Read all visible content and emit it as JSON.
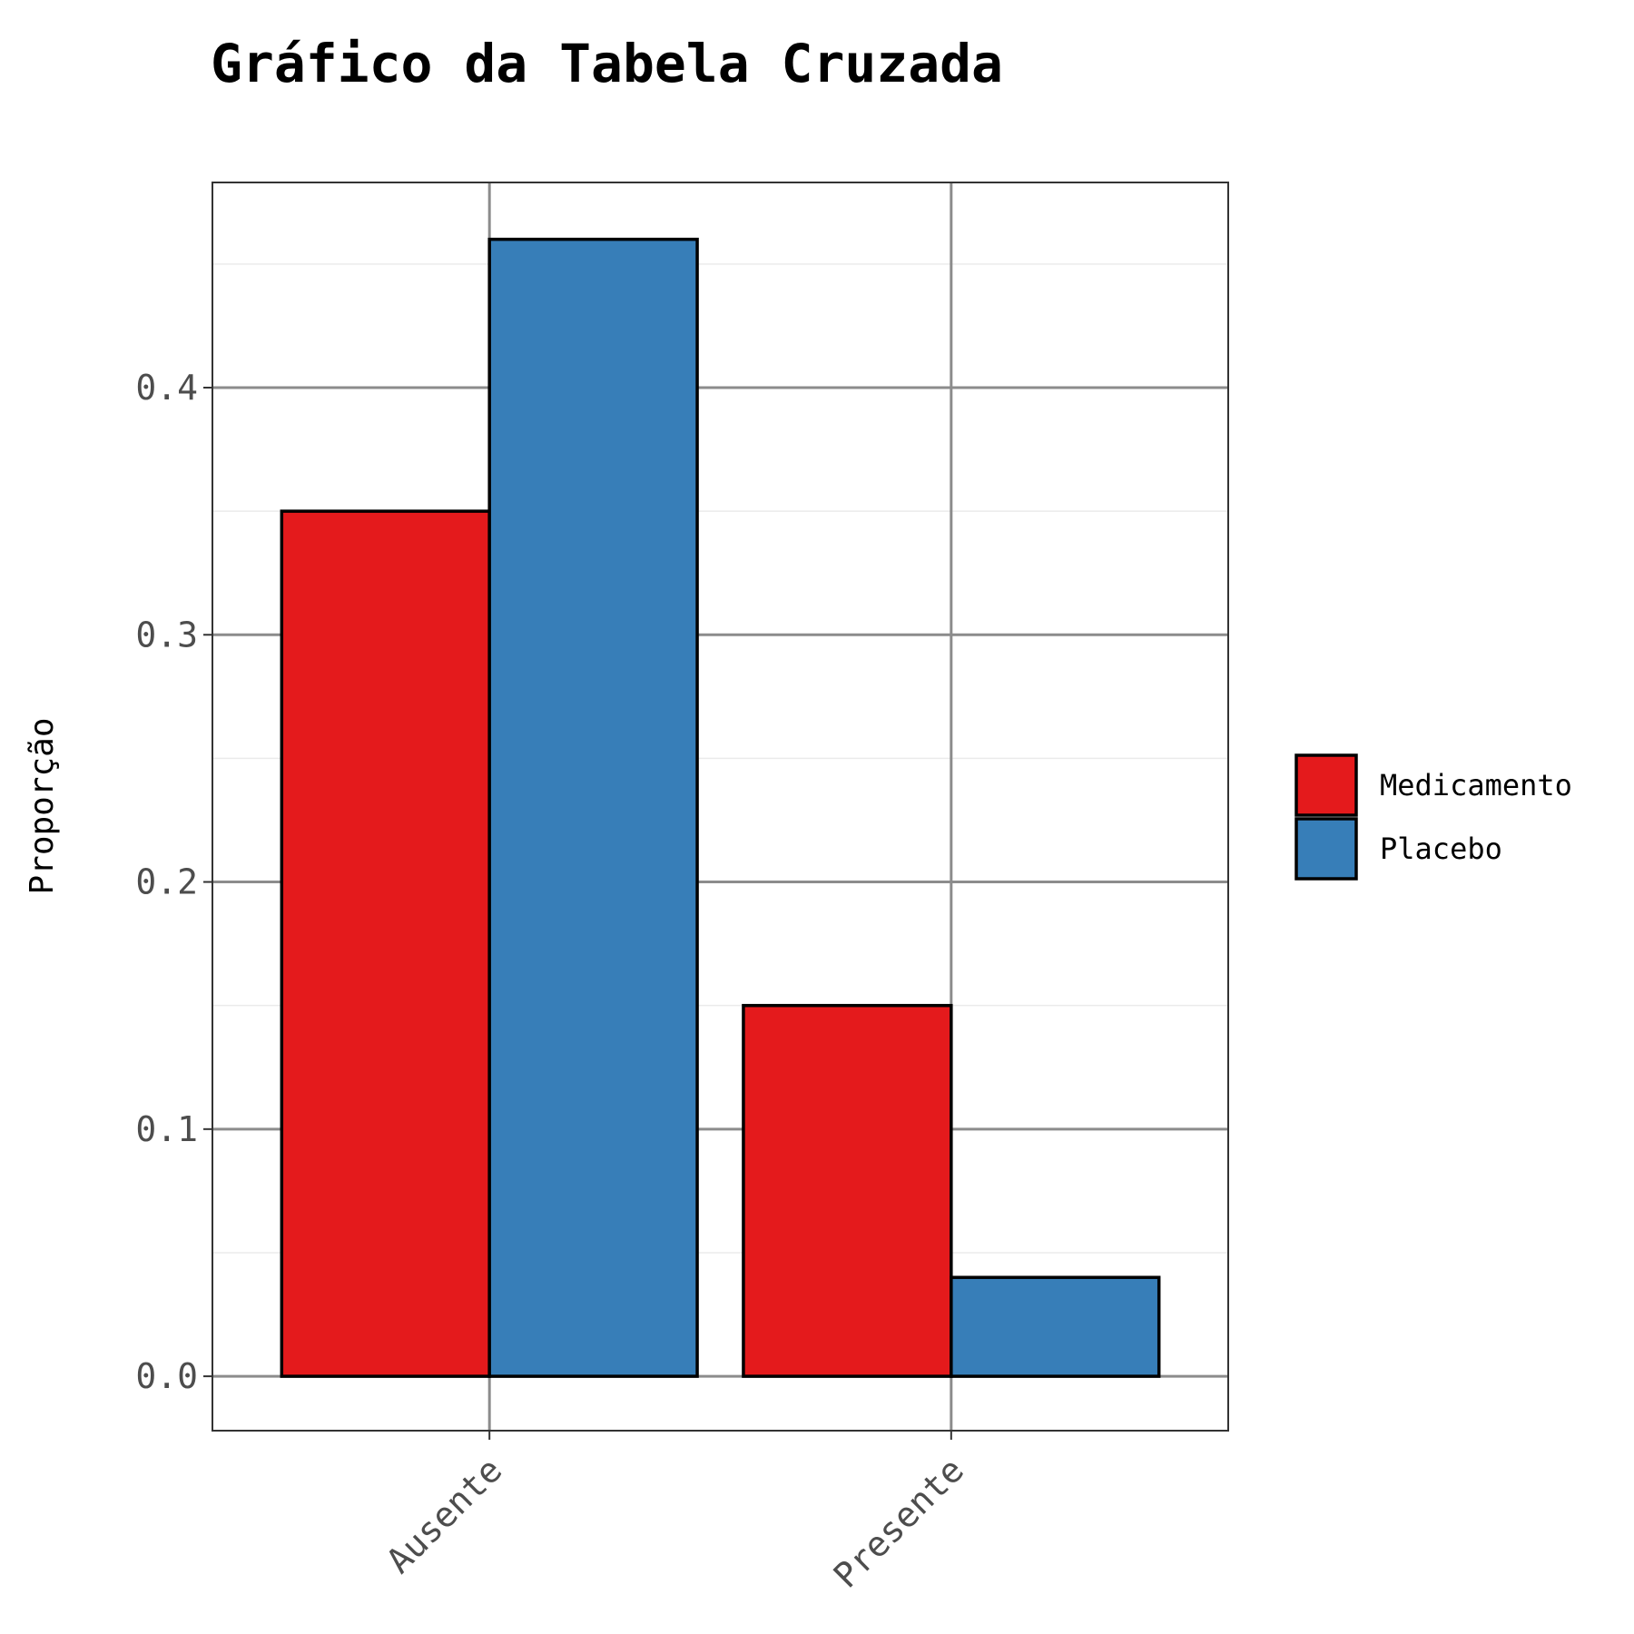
{
  "chart_data": {
    "type": "bar",
    "title": "Gráfico da Tabela Cruzada",
    "xlabel": "",
    "ylabel": "Proporção",
    "categories": [
      "Ausente",
      "Presente"
    ],
    "series": [
      {
        "name": "Medicamento",
        "values": [
          0.35,
          0.15
        ],
        "color": "#E41A1C"
      },
      {
        "name": "Placebo",
        "values": [
          0.46,
          0.04
        ],
        "color": "#377EB8"
      }
    ],
    "ylim": [
      -0.022,
      0.483
    ],
    "yticks": [
      0.0,
      0.1,
      0.2,
      0.3,
      0.4
    ],
    "ytick_labels": [
      "0.0",
      "0.1",
      "0.2",
      "0.3",
      "0.4"
    ],
    "grid": true,
    "legend_position": "right"
  }
}
